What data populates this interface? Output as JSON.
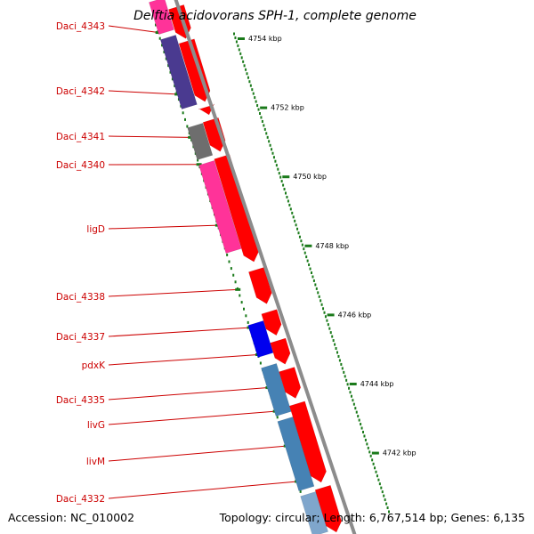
{
  "title": "Delftia acidovorans SPH-1, complete genome",
  "footer": {
    "accession": "Accession: NC_010002",
    "summary": "Topology: circular; Length: 6,767,514 bp; Genes: 6,135"
  },
  "colors": {
    "backbone": "#8c8c8c",
    "forward_gene": "#ff0000",
    "label": "#cc0000",
    "tick": "#1a7a1a",
    "pink": "#ff3399",
    "indigo": "#4a3a90",
    "gray": "#6e6e6e",
    "blue": "#0000ee",
    "steelblue": "#4682b4",
    "lightblue": "#7fa6cc"
  },
  "scale_ticks": [
    "4754 kbp",
    "4752 kbp",
    "4750 kbp",
    "4748 kbp",
    "4746 kbp",
    "4744 kbp",
    "4742 kbp"
  ],
  "gene_labels": [
    "Daci_4343",
    "Daci_4342",
    "Daci_4341",
    "Daci_4340",
    "ligD",
    "Daci_4338",
    "Daci_4337",
    "pdxK",
    "Daci_4335",
    "livG",
    "livM",
    "Daci_4332"
  ],
  "reverse_genes": [
    {
      "color": "pink"
    },
    {
      "color": "indigo"
    },
    {
      "color": "gray"
    },
    {
      "color": "pink"
    },
    {
      "color": "blue"
    },
    {
      "color": "steelblue"
    },
    {
      "color": "steelblue"
    },
    {
      "color": "lightblue"
    }
  ],
  "forward_gene_count": 11
}
